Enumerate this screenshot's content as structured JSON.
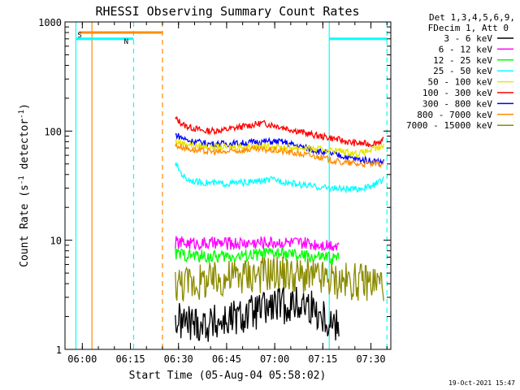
{
  "chart_data": {
    "type": "line",
    "title": "RHESSI Observing Summary Count Rates",
    "xlabel": "Start Time (05-Aug-04 05:58:02)",
    "ylabel_main": "Count Rate (s",
    "ylabel_sup1": "-1",
    "ylabel_mid": " detector",
    "ylabel_sup2": "-1",
    "ylabel_end": ")",
    "yscale": "log",
    "ylim": [
      1,
      1000
    ],
    "xlim_minutes": [
      -3,
      38.5
    ],
    "x_ticks": [
      {
        "m": 0,
        "label": "06:00"
      },
      {
        "m": 15,
        "label": "06:15"
      },
      {
        "m": 30,
        "label": "06:30"
      },
      {
        "m": 45,
        "label": "06:45"
      },
      {
        "m": 60,
        "label": "07:00"
      },
      {
        "m": 75,
        "label": "07:15"
      },
      {
        "m": 90,
        "label": "07:30"
      }
    ],
    "x_ticks_note": "m values above are minutes after 06:00 scaled by 0.4 for axis mapping",
    "y_ticks": [
      {
        "v": 1,
        "label": "1"
      },
      {
        "v": 10,
        "label": "10"
      },
      {
        "v": 100,
        "label": "100"
      },
      {
        "v": 1000,
        "label": "1000"
      }
    ],
    "legend": {
      "header": [
        "Det 1,3,4,5,6,9,",
        "FDecim 1, Att 0"
      ],
      "placement": "right",
      "entries": [
        {
          "label": "3 - 6 keV",
          "color": "#000000"
        },
        {
          "label": "6 - 12 keV",
          "color": "#ff00ff"
        },
        {
          "label": "12 - 25 keV",
          "color": "#00ff00"
        },
        {
          "label": "25 - 50 keV",
          "color": "#00ffff"
        },
        {
          "label": "50 - 100 keV",
          "color": "#e6e600"
        },
        {
          "label": "100 - 300 keV",
          "color": "#ff0000"
        },
        {
          "label": "300 - 800 keV",
          "color": "#0000ff"
        },
        {
          "label": "800 - 7000 keV",
          "color": "#ff8c00"
        },
        {
          "label": "7000 - 15000 keV",
          "color": "#8b8b00"
        }
      ]
    },
    "flags": [
      {
        "label": "S",
        "color": "#ff8c00",
        "from": "05:59",
        "to": "06:25",
        "value": 800
      },
      {
        "label": "N",
        "color": "#00ffff",
        "from": "05:58",
        "to": "06:16",
        "value": 700
      },
      {
        "label": "",
        "color": "#00ffff",
        "from": "07:17",
        "to": "07:35",
        "value": 700
      }
    ],
    "markers": [
      {
        "time": "05:58",
        "color": "#00ffff",
        "style": "solid"
      },
      {
        "time": "06:03",
        "color": "#ff8c00",
        "style": "solid"
      },
      {
        "time": "06:16",
        "color": "#00ffff",
        "style": "dashed"
      },
      {
        "time": "06:25",
        "color": "#ff8c00",
        "style": "dashed"
      },
      {
        "time": "07:17",
        "color": "#00ffff",
        "style": "solid"
      },
      {
        "time": "07:35",
        "color": "#00ffff",
        "style": "dashed"
      }
    ],
    "series": [
      {
        "name": "100 - 300 keV",
        "color": "#ff0000",
        "times": [
          "06:29",
          "06:32",
          "06:38",
          "06:44",
          "06:50",
          "06:56",
          "07:00",
          "07:06",
          "07:12",
          "07:18",
          "07:24",
          "07:30",
          "07:34"
        ],
        "values": [
          130,
          112,
          100,
          102,
          110,
          118,
          113,
          102,
          92,
          86,
          78,
          76,
          82
        ]
      },
      {
        "name": "300 - 800 keV",
        "color": "#0000ff",
        "times": [
          "06:29",
          "06:33",
          "06:40",
          "06:48",
          "06:56",
          "07:02",
          "07:08",
          "07:14",
          "07:20",
          "07:26",
          "07:34"
        ],
        "values": [
          93,
          82,
          76,
          77,
          80,
          80,
          72,
          65,
          60,
          55,
          52
        ]
      },
      {
        "name": "50 - 100 keV",
        "color": "#e6e600",
        "times": [
          "06:29",
          "06:36",
          "06:44",
          "06:52",
          "07:00",
          "07:08",
          "07:14",
          "07:20",
          "07:26",
          "07:34"
        ],
        "values": [
          80,
          73,
          71,
          73,
          72,
          70,
          68,
          66,
          62,
          72
        ]
      },
      {
        "name": "800 - 7000 keV",
        "color": "#ff8c00",
        "times": [
          "06:29",
          "06:36",
          "06:44",
          "06:52",
          "07:00",
          "07:06",
          "07:14",
          "07:20",
          "07:26",
          "07:34"
        ],
        "values": [
          74,
          66,
          64,
          68,
          67,
          63,
          58,
          52,
          50,
          50
        ]
      },
      {
        "name": "25 - 50 keV",
        "color": "#00ffff",
        "times": [
          "06:29",
          "06:32",
          "06:36",
          "06:44",
          "06:52",
          "07:00",
          "07:06",
          "07:12",
          "07:18",
          "07:24",
          "07:30",
          "07:34"
        ],
        "values": [
          50,
          37,
          34,
          33,
          34,
          36,
          33,
          31,
          30,
          29,
          31,
          36
        ]
      },
      {
        "name": "6 - 12 keV",
        "color": "#ff00ff",
        "times": [
          "06:29",
          "06:40",
          "06:50",
          "07:00",
          "07:10",
          "07:20"
        ],
        "values": [
          9.5,
          9.3,
          9.4,
          9.6,
          9.3,
          9.1
        ]
      },
      {
        "name": "12 - 25 keV",
        "color": "#00ff00",
        "times": [
          "06:29",
          "06:40",
          "06:50",
          "07:00",
          "07:10",
          "07:20"
        ],
        "values": [
          7.5,
          7.0,
          7.2,
          7.6,
          7.1,
          6.8
        ]
      },
      {
        "name": "7000 - 15000 keV",
        "color": "#8b8b00",
        "times": [
          "06:29",
          "06:40",
          "06:50",
          "07:00",
          "07:10",
          "07:20",
          "07:34"
        ],
        "values": [
          4.0,
          4.2,
          4.8,
          5.0,
          4.6,
          4.2,
          4.1
        ]
      },
      {
        "name": "3 - 6 keV",
        "color": "#000000",
        "times": [
          "06:29",
          "06:40",
          "06:50",
          "07:00",
          "07:10",
          "07:20"
        ],
        "values": [
          1.8,
          1.7,
          2.0,
          2.5,
          2.6,
          1.6
        ]
      }
    ]
  },
  "footer": {
    "date_stamp": "19-Oct-2021 15:47"
  }
}
